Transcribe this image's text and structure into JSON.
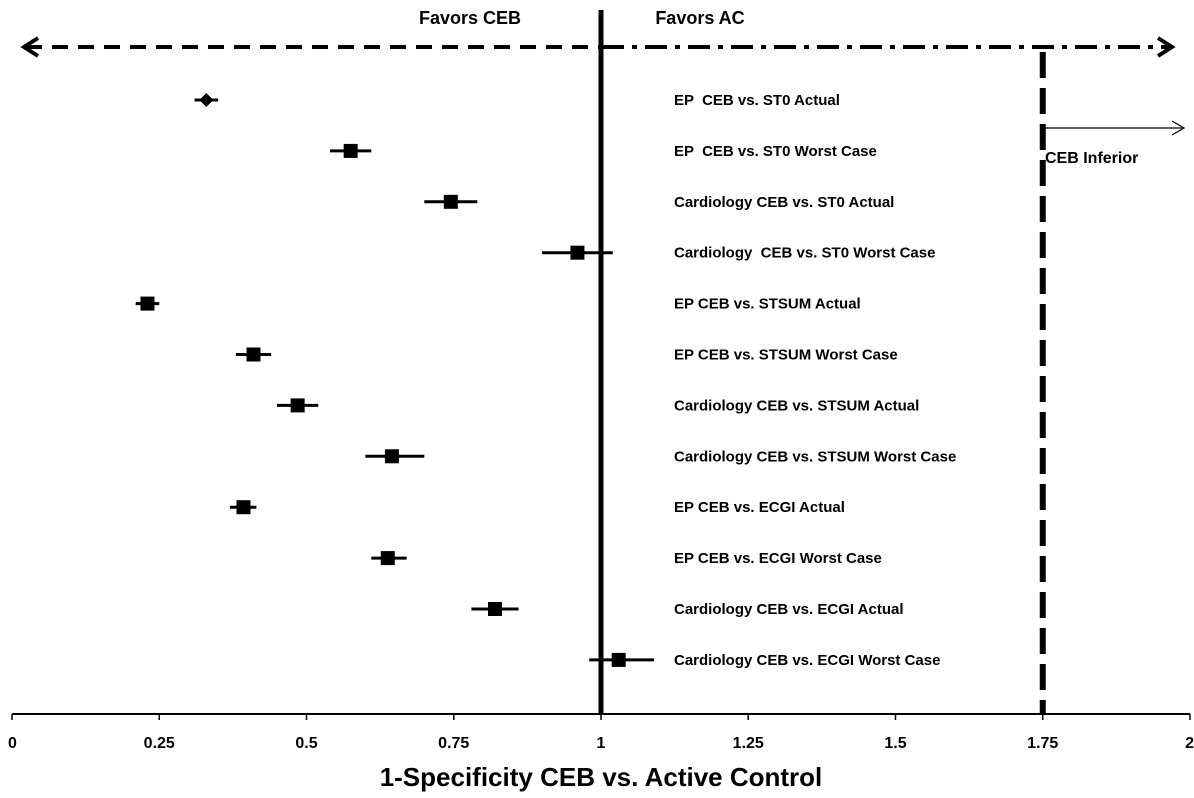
{
  "chart_data": {
    "type": "scatter",
    "subtype": "forest-plot",
    "title": "",
    "xlabel": "1-Specificity CEB vs. Active Control",
    "ylabel": "",
    "xlim": [
      0,
      2
    ],
    "x_ticks": [
      0,
      0.25,
      0.5,
      0.75,
      1,
      1.25,
      1.5,
      1.75,
      2
    ],
    "x_tick_labels": [
      "0",
      "0.25",
      "0.5",
      "0.75",
      "1",
      "1.25",
      "1.5",
      "1.75",
      "2"
    ],
    "grid": false,
    "reference_line": 1,
    "margin_line": 1.75,
    "header_left": "Favors  CEB",
    "header_right": "Favors AC",
    "margin_annotation": "CEB Inferior",
    "colors": {
      "marks": "#000000",
      "background": "#ffffff"
    },
    "rows": [
      {
        "label": "EP  CEB vs. ST0 Actual",
        "x": 0.33,
        "ci": [
          0.31,
          0.35
        ],
        "marker": "diamond"
      },
      {
        "label": "EP  CEB vs. ST0 Worst Case",
        "x": 0.575,
        "ci": [
          0.54,
          0.61
        ],
        "marker": "square"
      },
      {
        "label": "Cardiology CEB vs. ST0 Actual",
        "x": 0.745,
        "ci": [
          0.7,
          0.79
        ],
        "marker": "square"
      },
      {
        "label": "Cardiology  CEB vs. ST0 Worst Case",
        "x": 0.96,
        "ci": [
          0.9,
          1.02
        ],
        "marker": "square"
      },
      {
        "label": "EP CEB vs. STSUM Actual",
        "x": 0.23,
        "ci": [
          0.21,
          0.25
        ],
        "marker": "square"
      },
      {
        "label": "EP CEB vs. STSUM Worst Case",
        "x": 0.41,
        "ci": [
          0.38,
          0.44
        ],
        "marker": "square"
      },
      {
        "label": "Cardiology CEB vs. STSUM Actual",
        "x": 0.485,
        "ci": [
          0.45,
          0.52
        ],
        "marker": "square"
      },
      {
        "label": "Cardiology CEB vs. STSUM Worst Case",
        "x": 0.645,
        "ci": [
          0.6,
          0.7
        ],
        "marker": "square"
      },
      {
        "label": "EP CEB vs. ECGI Actual",
        "x": 0.393,
        "ci": [
          0.37,
          0.415
        ],
        "marker": "square"
      },
      {
        "label": "EP CEB vs. ECGI Worst Case",
        "x": 0.638,
        "ci": [
          0.61,
          0.67
        ],
        "marker": "square"
      },
      {
        "label": "Cardiology CEB vs. ECGI Actual",
        "x": 0.82,
        "ci": [
          0.78,
          0.86
        ],
        "marker": "square"
      },
      {
        "label": "Cardiology CEB vs. ECGI Worst Case",
        "x": 1.03,
        "ci": [
          0.98,
          1.09
        ],
        "marker": "square"
      }
    ]
  }
}
